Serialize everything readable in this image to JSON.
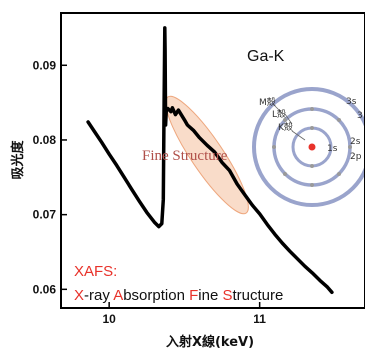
{
  "chart_data": {
    "type": "line",
    "xlabel": "入射X線(keV)",
    "ylabel": "吸光度",
    "xlim": [
      9.68,
      11.7
    ],
    "ylim": [
      0.0575,
      0.097
    ],
    "xticks": [
      {
        "v": 10,
        "label": "10"
      },
      {
        "v": 11,
        "label": "11"
      }
    ],
    "yticks": [
      {
        "v": 0.06,
        "label": "0.06"
      },
      {
        "v": 0.07,
        "label": "0.07"
      },
      {
        "v": 0.08,
        "label": "0.08"
      },
      {
        "v": 0.09,
        "label": "0.09"
      }
    ],
    "grid": false,
    "series": [
      {
        "x": [
          9.86,
          9.9,
          9.95,
          10.0,
          10.05,
          10.1,
          10.15,
          10.2,
          10.25,
          10.3,
          10.33,
          10.35,
          10.36,
          10.365,
          10.37,
          10.372,
          10.375,
          10.38,
          10.39,
          10.41,
          10.42,
          10.44,
          10.46,
          10.5,
          10.52,
          10.56,
          10.6,
          10.65,
          10.7,
          10.75,
          10.8,
          10.85,
          10.9,
          10.95,
          11.0,
          11.05,
          11.1,
          11.15,
          11.2,
          11.25,
          11.3,
          11.35,
          11.4,
          11.45,
          11.48
        ],
        "y": [
          0.0824,
          0.0812,
          0.0797,
          0.0781,
          0.0766,
          0.075,
          0.0734,
          0.0718,
          0.0703,
          0.069,
          0.0684,
          0.0688,
          0.072,
          0.085,
          0.095,
          0.092,
          0.082,
          0.084,
          0.0842,
          0.0838,
          0.0843,
          0.0834,
          0.084,
          0.0827,
          0.082,
          0.0813,
          0.0803,
          0.0793,
          0.0784,
          0.077,
          0.0759,
          0.0741,
          0.0727,
          0.0713,
          0.0701,
          0.0687,
          0.0674,
          0.0662,
          0.0651,
          0.0641,
          0.0631,
          0.0622,
          0.0612,
          0.0603,
          0.0596
        ]
      }
    ],
    "annotations": {
      "element": "Ga-K",
      "fine_structure": "Fine Structure",
      "xafs_title": "XAFS:",
      "xafs_words": [
        {
          "initial": "X",
          "rest": "-ray "
        },
        {
          "initial": "A",
          "rest": "bsorption "
        },
        {
          "initial": "F",
          "rest": "ine "
        },
        {
          "initial": "S",
          "rest": "tructure"
        }
      ],
      "initial_color": "#e8322a",
      "highlight_color": "#f2b48e"
    },
    "atom_diagram": {
      "shell_labels": [
        {
          "text": "K殻"
        },
        {
          "text": "L殻"
        },
        {
          "text": "M殻"
        }
      ],
      "orbital_labels": [
        "1s",
        "2s",
        "2p",
        "3s",
        "3"
      ],
      "nucleus_color": "#e8322a",
      "shell_color": "#9aa4cc"
    }
  }
}
